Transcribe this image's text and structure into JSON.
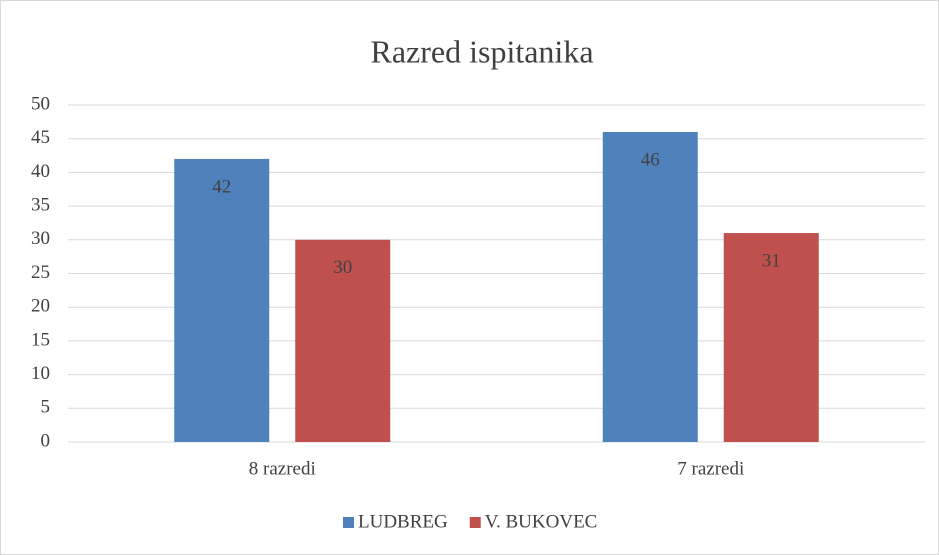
{
  "chart_data": {
    "type": "bar",
    "title": "Razred ispitanika",
    "categories": [
      "8 razredi",
      "7 razredi"
    ],
    "series": [
      {
        "name": "LUDBREG",
        "color": "#4f81bd",
        "values": [
          42,
          46
        ]
      },
      {
        "name": "V. BUKOVEC",
        "color": "#c0504d",
        "values": [
          30,
          31
        ]
      }
    ],
    "ylim": [
      0,
      50
    ],
    "yticks": [
      0,
      5,
      10,
      15,
      20,
      25,
      30,
      35,
      40,
      45,
      50
    ],
    "grid": true,
    "legend": "bottom"
  }
}
